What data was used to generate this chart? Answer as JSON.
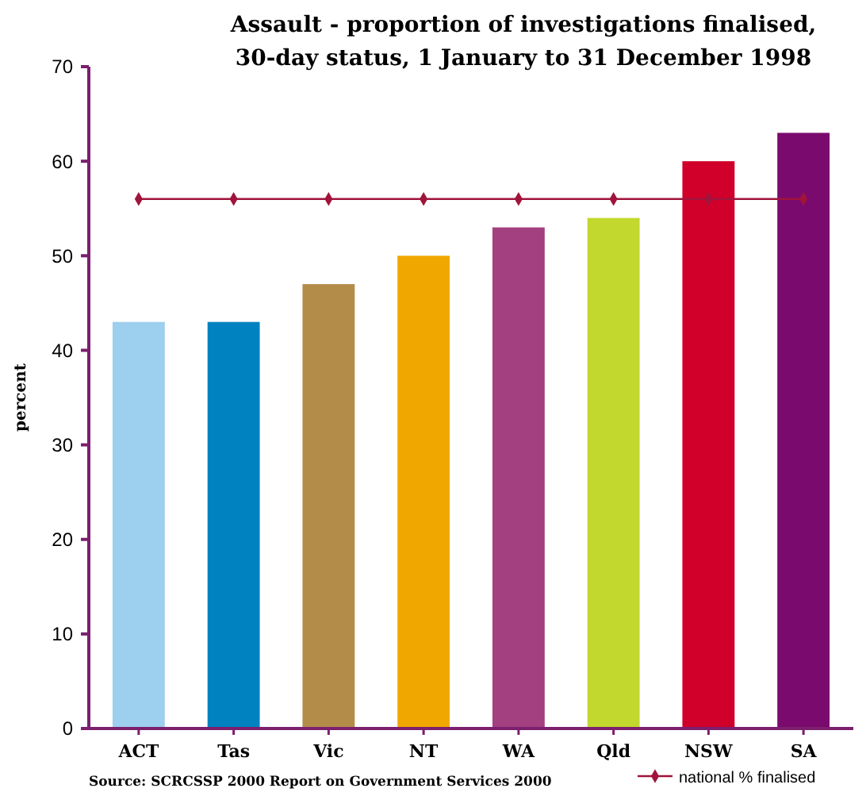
{
  "chart_data": {
    "type": "bar",
    "title": "Assault - proportion of investigations finalised,\n30-day status, 1 January to 31 December 1998",
    "ylabel": "percent",
    "annotations": [
      "Source: SCRCSSP 2000 Report on Government Services 2000"
    ],
    "categories": [
      "ACT",
      "Tas",
      "Vic",
      "NT",
      "WA",
      "Qld",
      "NSW",
      "SA"
    ],
    "series": [
      {
        "colors": [
          "#9dcfee",
          "#0082c0",
          "#b48c4a",
          "#f0a800",
          "#a3407f",
          "#c2d82e",
          "#d0002a",
          "#7b0a6e"
        ],
        "values": [
          43,
          43,
          47,
          50,
          53,
          54,
          60,
          63
        ]
      },
      {
        "type": "line",
        "name": "national % finalised",
        "color": "#a0143c",
        "values": [
          56,
          56,
          56,
          56,
          56,
          56,
          56,
          56
        ]
      }
    ],
    "ylim": [
      0,
      70
    ],
    "yticks": [
      0,
      10,
      20,
      30,
      40,
      50,
      60,
      70
    ],
    "grid": false,
    "legend": "bottom right",
    "marker": "diamond",
    "line_style": "solid"
  }
}
